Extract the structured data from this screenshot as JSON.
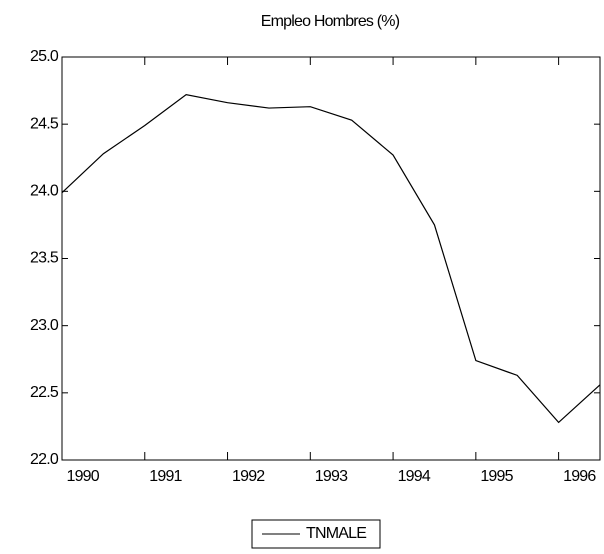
{
  "chart_data": {
    "type": "line",
    "title": "Empleo Hombres (%)",
    "x": [
      1990,
      1990.5,
      1991,
      1991.5,
      1992,
      1992.5,
      1993,
      1993.5,
      1994,
      1994.5,
      1995,
      1995.5,
      1996,
      1996.5
    ],
    "series": [
      {
        "name": "TNMALE",
        "color": "#000000",
        "values": [
          23.99,
          24.28,
          24.49,
          24.72,
          24.66,
          24.62,
          24.63,
          24.53,
          24.27,
          23.75,
          22.74,
          22.63,
          22.28,
          22.56
        ]
      }
    ],
    "xlim": [
      1990,
      1996.5
    ],
    "xticks": [
      1990,
      1991,
      1992,
      1993,
      1994,
      1995,
      1996
    ],
    "ylim": [
      22.0,
      25.0
    ],
    "yticks": [
      {
        "value": 22.0,
        "label": "22.0"
      },
      22.5,
      {
        "value": 23.0,
        "label": "23.0"
      },
      23.5,
      {
        "value": 24.0,
        "label": "24.0"
      },
      24.5,
      {
        "value": 25.0,
        "label": "25.0"
      }
    ],
    "grid": false,
    "legend": "bottom"
  }
}
